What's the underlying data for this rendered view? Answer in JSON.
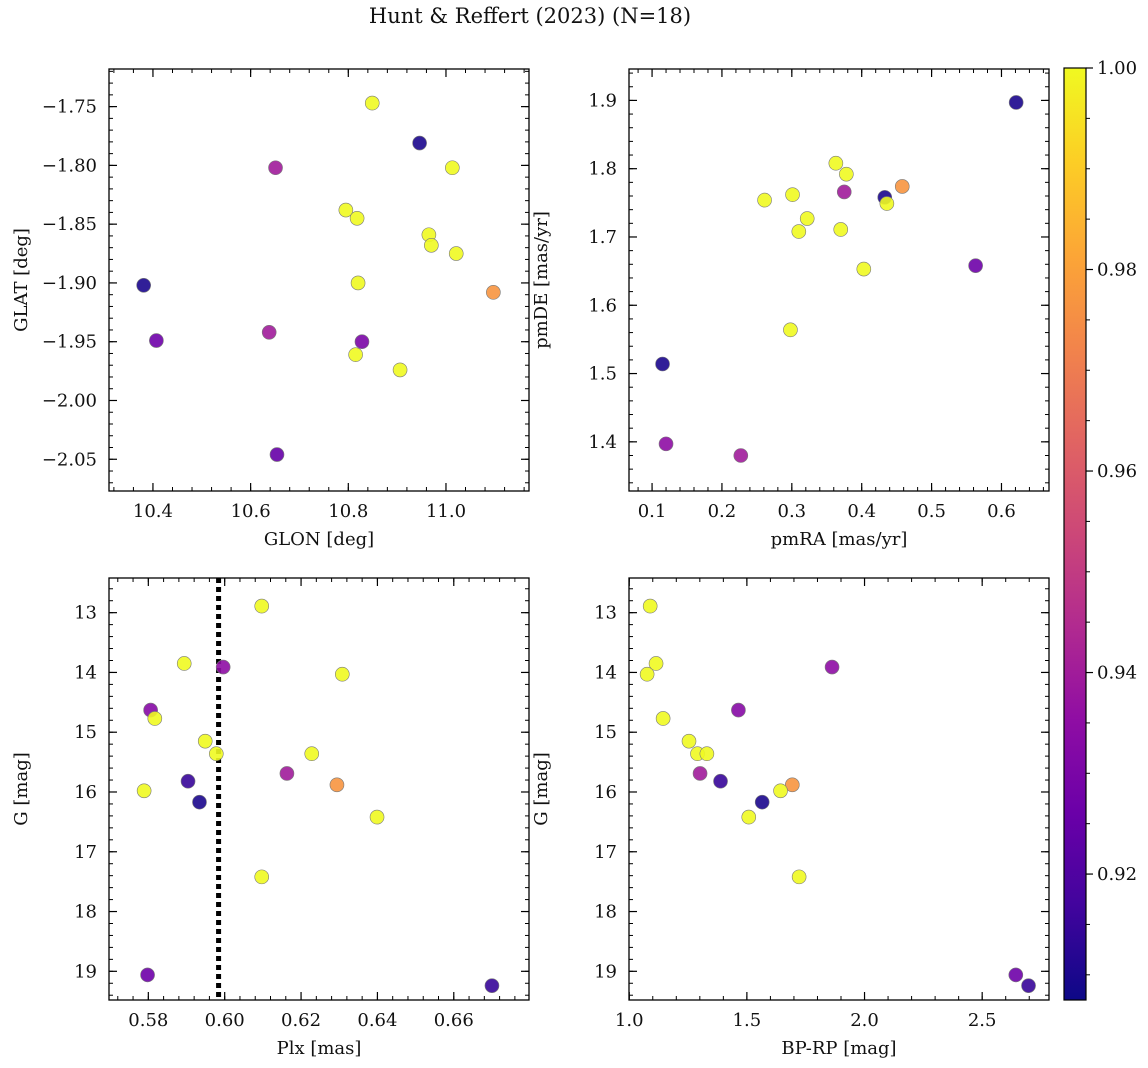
{
  "figure": {
    "title": "Hunt & Reffert (2023) (N=18)"
  },
  "colorbar": {
    "colormap": "plasma",
    "range": [
      0.9075,
      1.0
    ],
    "ticks": [
      0.92,
      0.94,
      0.96,
      0.98,
      1.0
    ],
    "tick_labels": [
      "0.92",
      "0.94",
      "0.96",
      "0.98",
      "1.00"
    ]
  },
  "chart_data": [
    {
      "id": "glon-glat",
      "type": "scatter",
      "title": "",
      "xlabel": "GLON [deg]",
      "ylabel": "GLAT [deg]",
      "xlim": [
        10.31,
        11.17
      ],
      "ylim": [
        -2.077,
        -1.718
      ],
      "invert_y": false,
      "xticks": [
        10.4,
        10.6,
        10.8,
        11.0
      ],
      "xtick_labels": [
        "10.4",
        "10.6",
        "10.8",
        "11.0"
      ],
      "yticks": [
        -2.05,
        -2.0,
        -1.95,
        -1.9,
        -1.85,
        -1.8,
        -1.75
      ],
      "ytick_labels": [
        "−2.05",
        "−2.00",
        "−1.95",
        "−1.90",
        "−1.85",
        "−1.80",
        "−1.75"
      ],
      "points": [
        {
          "x": 10.849,
          "y": -1.747,
          "c": 1.0
        },
        {
          "x": 10.946,
          "y": -1.781,
          "c": 0.91
        },
        {
          "x": 10.651,
          "y": -1.802,
          "c": 0.94
        },
        {
          "x": 11.013,
          "y": -1.802,
          "c": 1.0
        },
        {
          "x": 10.795,
          "y": -1.838,
          "c": 1.0
        },
        {
          "x": 10.818,
          "y": -1.845,
          "c": 1.0
        },
        {
          "x": 10.965,
          "y": -1.859,
          "c": 1.0
        },
        {
          "x": 10.97,
          "y": -1.868,
          "c": 1.0
        },
        {
          "x": 11.021,
          "y": -1.875,
          "c": 1.0
        },
        {
          "x": 10.82,
          "y": -1.9,
          "c": 1.0
        },
        {
          "x": 10.381,
          "y": -1.902,
          "c": 0.91
        },
        {
          "x": 11.097,
          "y": -1.908,
          "c": 0.977
        },
        {
          "x": 10.638,
          "y": -1.942,
          "c": 0.94
        },
        {
          "x": 10.407,
          "y": -1.949,
          "c": 0.927
        },
        {
          "x": 10.828,
          "y": -1.95,
          "c": 0.93
        },
        {
          "x": 10.815,
          "y": -1.961,
          "c": 1.0
        },
        {
          "x": 10.906,
          "y": -1.974,
          "c": 1.0
        },
        {
          "x": 10.654,
          "y": -2.046,
          "c": 0.925
        }
      ]
    },
    {
      "id": "pmra-pmde",
      "type": "scatter",
      "title": "",
      "xlabel": "pmRA [mas/yr]",
      "ylabel": "pmDE [mas/yr]",
      "xlim": [
        0.067,
        0.668
      ],
      "ylim": [
        1.328,
        1.946
      ],
      "invert_y": false,
      "xticks": [
        0.1,
        0.2,
        0.3,
        0.4,
        0.5,
        0.6
      ],
      "xtick_labels": [
        "0.1",
        "0.2",
        "0.3",
        "0.4",
        "0.5",
        "0.6"
      ],
      "yticks": [
        1.4,
        1.5,
        1.6,
        1.7,
        1.8,
        1.9
      ],
      "ytick_labels": [
        "1.4",
        "1.5",
        "1.6",
        "1.7",
        "1.8",
        "1.9"
      ],
      "points": [
        {
          "x": 0.621,
          "y": 1.897,
          "c": 0.91
        },
        {
          "x": 0.363,
          "y": 1.808,
          "c": 1.0
        },
        {
          "x": 0.378,
          "y": 1.792,
          "c": 1.0
        },
        {
          "x": 0.458,
          "y": 1.774,
          "c": 0.977
        },
        {
          "x": 0.375,
          "y": 1.766,
          "c": 0.94
        },
        {
          "x": 0.301,
          "y": 1.762,
          "c": 1.0
        },
        {
          "x": 0.433,
          "y": 1.758,
          "c": 0.91
        },
        {
          "x": 0.261,
          "y": 1.754,
          "c": 1.0
        },
        {
          "x": 0.436,
          "y": 1.749,
          "c": 1.0
        },
        {
          "x": 0.322,
          "y": 1.727,
          "c": 1.0
        },
        {
          "x": 0.37,
          "y": 1.711,
          "c": 1.0
        },
        {
          "x": 0.31,
          "y": 1.708,
          "c": 1.0
        },
        {
          "x": 0.563,
          "y": 1.658,
          "c": 0.927
        },
        {
          "x": 0.403,
          "y": 1.653,
          "c": 1.0
        },
        {
          "x": 0.298,
          "y": 1.564,
          "c": 1.0
        },
        {
          "x": 0.115,
          "y": 1.514,
          "c": 0.91
        },
        {
          "x": 0.12,
          "y": 1.397,
          "c": 0.935
        },
        {
          "x": 0.227,
          "y": 1.38,
          "c": 0.94
        }
      ]
    },
    {
      "id": "plx-g",
      "type": "scatter",
      "title": "",
      "xlabel": "Plx [mas]",
      "ylabel": "G [mag]",
      "xlim": [
        0.5697,
        0.6797
      ],
      "ylim": [
        12.42,
        19.48
      ],
      "invert_y": true,
      "vline": {
        "x": 0.5984,
        "style": "dotted"
      },
      "xticks": [
        0.58,
        0.6,
        0.62,
        0.64,
        0.66
      ],
      "xtick_labels": [
        "0.58",
        "0.60",
        "0.62",
        "0.64",
        "0.66"
      ],
      "yticks": [
        13,
        14,
        15,
        16,
        17,
        18,
        19
      ],
      "ytick_labels": [
        "13",
        "14",
        "15",
        "16",
        "17",
        "18",
        "19"
      ],
      "points": [
        {
          "x": 0.6097,
          "y": 12.89,
          "c": 1.0
        },
        {
          "x": 0.5894,
          "y": 13.85,
          "c": 1.0
        },
        {
          "x": 0.5996,
          "y": 13.91,
          "c": 0.935
        },
        {
          "x": 0.6308,
          "y": 14.03,
          "c": 1.0
        },
        {
          "x": 0.5806,
          "y": 14.63,
          "c": 0.933
        },
        {
          "x": 0.5817,
          "y": 14.77,
          "c": 1.0
        },
        {
          "x": 0.5949,
          "y": 15.15,
          "c": 1.0
        },
        {
          "x": 0.5978,
          "y": 15.36,
          "c": 1.0
        },
        {
          "x": 0.6228,
          "y": 15.36,
          "c": 1.0
        },
        {
          "x": 0.6163,
          "y": 15.69,
          "c": 0.94
        },
        {
          "x": 0.5904,
          "y": 15.82,
          "c": 0.915
        },
        {
          "x": 0.6294,
          "y": 15.88,
          "c": 0.977
        },
        {
          "x": 0.5789,
          "y": 15.98,
          "c": 1.0
        },
        {
          "x": 0.5934,
          "y": 16.17,
          "c": 0.91
        },
        {
          "x": 0.6399,
          "y": 16.42,
          "c": 1.0
        },
        {
          "x": 0.6097,
          "y": 17.42,
          "c": 1.0
        },
        {
          "x": 0.5798,
          "y": 19.06,
          "c": 0.927
        },
        {
          "x": 0.67,
          "y": 19.24,
          "c": 0.915
        }
      ]
    },
    {
      "id": "bprp-g",
      "type": "scatter",
      "title": "",
      "xlabel": "BP-RP [mag]",
      "ylabel": "G [mag]",
      "xlim": [
        0.999,
        2.784
      ],
      "ylim": [
        12.42,
        19.48
      ],
      "invert_y": true,
      "xticks": [
        1.0,
        1.5,
        2.0,
        2.5
      ],
      "xtick_labels": [
        "1.0",
        "1.5",
        "2.0",
        "2.5"
      ],
      "yticks": [
        13,
        14,
        15,
        16,
        17,
        18,
        19
      ],
      "ytick_labels": [
        "13",
        "14",
        "15",
        "16",
        "17",
        "18",
        "19"
      ],
      "points": [
        {
          "x": 1.089,
          "y": 12.89,
          "c": 1.0
        },
        {
          "x": 1.862,
          "y": 13.91,
          "c": 0.935
        },
        {
          "x": 1.114,
          "y": 13.85,
          "c": 1.0
        },
        {
          "x": 1.076,
          "y": 14.03,
          "c": 1.0
        },
        {
          "x": 1.464,
          "y": 14.63,
          "c": 0.933
        },
        {
          "x": 1.144,
          "y": 14.77,
          "c": 1.0
        },
        {
          "x": 1.254,
          "y": 15.15,
          "c": 1.0
        },
        {
          "x": 1.29,
          "y": 15.36,
          "c": 1.0
        },
        {
          "x": 1.33,
          "y": 15.36,
          "c": 1.0
        },
        {
          "x": 1.301,
          "y": 15.69,
          "c": 0.94
        },
        {
          "x": 1.388,
          "y": 15.82,
          "c": 0.915
        },
        {
          "x": 1.693,
          "y": 15.88,
          "c": 0.977
        },
        {
          "x": 1.643,
          "y": 15.98,
          "c": 1.0
        },
        {
          "x": 1.565,
          "y": 16.17,
          "c": 0.91
        },
        {
          "x": 1.508,
          "y": 16.42,
          "c": 1.0
        },
        {
          "x": 1.722,
          "y": 17.42,
          "c": 1.0
        },
        {
          "x": 2.643,
          "y": 19.06,
          "c": 0.927
        },
        {
          "x": 2.697,
          "y": 19.24,
          "c": 0.915
        }
      ]
    }
  ]
}
